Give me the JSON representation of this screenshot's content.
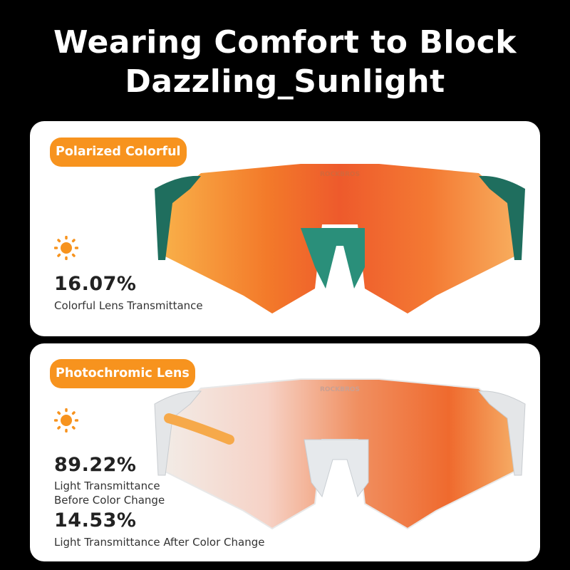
{
  "headline": {
    "line1": "Wearing Comfort to Block",
    "line2": "Dazzling_Sunlight"
  },
  "brand_logo": "ROCKBROS",
  "colors": {
    "accent": "#f7931e",
    "background": "#000000",
    "card": "#ffffff",
    "frame_green": "#1f7a66"
  },
  "cards": [
    {
      "badge": "Polarized Colorful",
      "icon": "sun-icon",
      "value": "16.07%",
      "description": "Colorful Lens Transmittance"
    },
    {
      "badge": "Photochromic Lens",
      "icon": "sun-icon",
      "value_before": "89.22%",
      "description_before_line1": "Light Transmittance",
      "description_before_line2": "Before Color Change",
      "value_after": "14.53%",
      "description_after": "Light Transmittance After Color Change"
    }
  ]
}
